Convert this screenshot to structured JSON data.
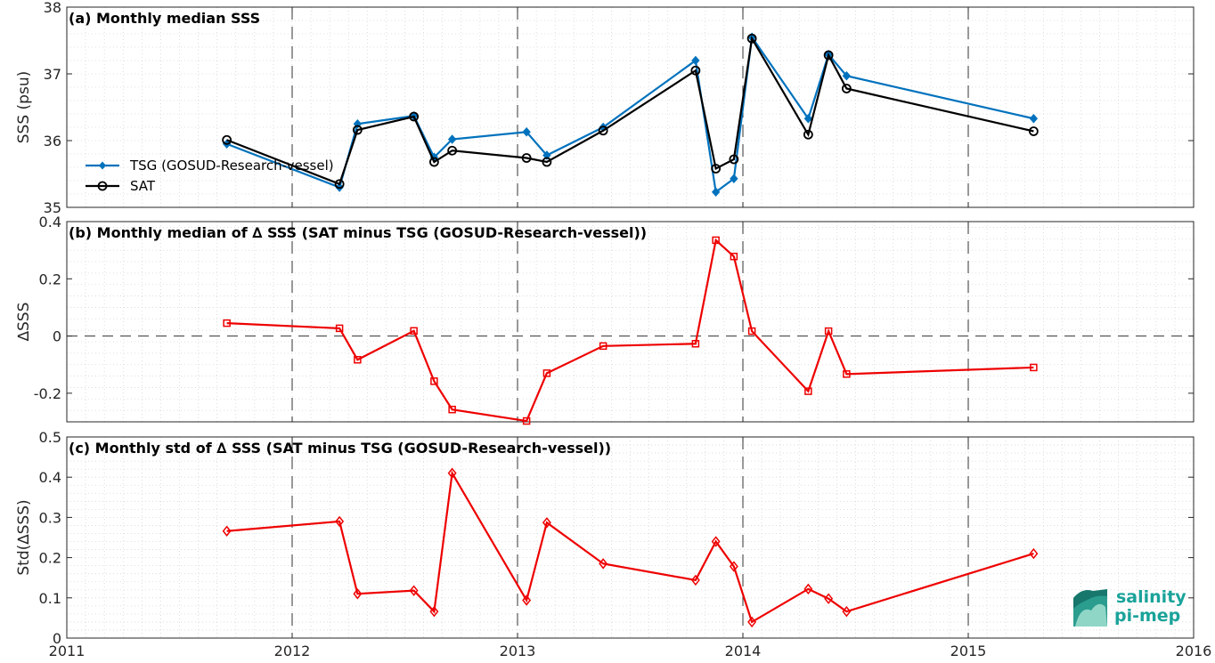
{
  "chart_data": [
    {
      "type": "line",
      "title": "(a) Monthly median SSS",
      "ylabel": "SSS (psu)",
      "xlim": [
        2011,
        2016
      ],
      "ylim": [
        35,
        38
      ],
      "yticks": [
        35,
        36,
        37,
        38
      ],
      "xticks": [
        2011,
        2012,
        2013,
        2014,
        2015,
        2016
      ],
      "grid": true,
      "legend_position": "left",
      "series": [
        {
          "name": "TSG (GOSUD-Research-vessel)",
          "color": "#0072bd",
          "marker": "filled-diamond",
          "x": [
            2011.71,
            2012.21,
            2012.29,
            2012.54,
            2012.63,
            2012.71,
            2013.04,
            2013.13,
            2013.38,
            2013.79,
            2013.88,
            2013.96,
            2014.04,
            2014.29,
            2014.38,
            2014.46,
            2015.29
          ],
          "y": [
            35.95,
            35.3,
            36.25,
            36.37,
            35.75,
            36.02,
            36.13,
            35.78,
            36.2,
            37.2,
            35.23,
            35.43,
            37.55,
            36.33,
            37.29,
            36.97,
            36.33
          ]
        },
        {
          "name": "SAT",
          "color": "#000000",
          "marker": "open-circle",
          "x": [
            2011.71,
            2012.21,
            2012.29,
            2012.54,
            2012.63,
            2012.71,
            2013.04,
            2013.13,
            2013.38,
            2013.79,
            2013.88,
            2013.96,
            2014.04,
            2014.29,
            2014.38,
            2014.46,
            2015.29
          ],
          "y": [
            36.01,
            35.35,
            36.16,
            36.36,
            35.68,
            35.85,
            35.74,
            35.68,
            36.15,
            37.05,
            35.58,
            35.72,
            37.53,
            36.09,
            37.28,
            36.78,
            36.14
          ]
        }
      ]
    },
    {
      "type": "line",
      "title": "(b) Monthly median of ∆ SSS (SAT minus TSG (GOSUD-Research-vessel))",
      "ylabel": "∆SSS",
      "xlim": [
        2011,
        2016
      ],
      "ylim": [
        -0.3,
        0.4
      ],
      "yticks": [
        -0.2,
        0,
        0.2,
        0.4
      ],
      "yticklabels": [
        "-0.2",
        "0",
        "0.2",
        "0.4"
      ],
      "zero_line": true,
      "grid": true,
      "series": [
        {
          "color": "#ee0000",
          "marker": "open-square",
          "x": [
            2011.71,
            2012.21,
            2012.29,
            2012.54,
            2012.63,
            2012.71,
            2013.04,
            2013.13,
            2013.38,
            2013.79,
            2013.88,
            2013.96,
            2014.04,
            2014.29,
            2014.38,
            2014.46,
            2015.29
          ],
          "y": [
            0.045,
            0.027,
            -0.083,
            0.018,
            -0.158,
            -0.257,
            -0.297,
            -0.13,
            -0.035,
            -0.027,
            0.335,
            0.278,
            0.017,
            -0.193,
            0.017,
            -0.133,
            -0.11
          ]
        }
      ]
    },
    {
      "type": "line",
      "title": "(c) Monthly std of ∆ SSS (SAT minus TSG (GOSUD-Research-vessel))",
      "ylabel": "Std(∆SSS)",
      "xlim": [
        2011,
        2016
      ],
      "ylim": [
        0,
        0.5
      ],
      "yticks": [
        0,
        0.1,
        0.2,
        0.3,
        0.4,
        0.5
      ],
      "yticklabels": [
        "0",
        "0.1",
        "0.2",
        "0.3",
        "0.4",
        "0.5"
      ],
      "xticklabels": [
        "2011",
        "2012",
        "2013",
        "2014",
        "2015",
        "2016"
      ],
      "grid": true,
      "series": [
        {
          "color": "#ee0000",
          "marker": "open-diamond",
          "x": [
            2011.71,
            2012.21,
            2012.29,
            2012.54,
            2012.63,
            2012.71,
            2013.04,
            2013.13,
            2013.38,
            2013.79,
            2013.88,
            2013.96,
            2014.04,
            2014.29,
            2014.38,
            2014.46,
            2015.29
          ],
          "y": [
            0.266,
            0.29,
            0.11,
            0.118,
            0.066,
            0.41,
            0.094,
            0.287,
            0.185,
            0.144,
            0.24,
            0.178,
            0.04,
            0.122,
            0.098,
            0.066,
            0.21
          ]
        }
      ]
    }
  ],
  "logo": {
    "line1": "salinity",
    "line2": "pi-mep",
    "color": "#1aa39a"
  }
}
